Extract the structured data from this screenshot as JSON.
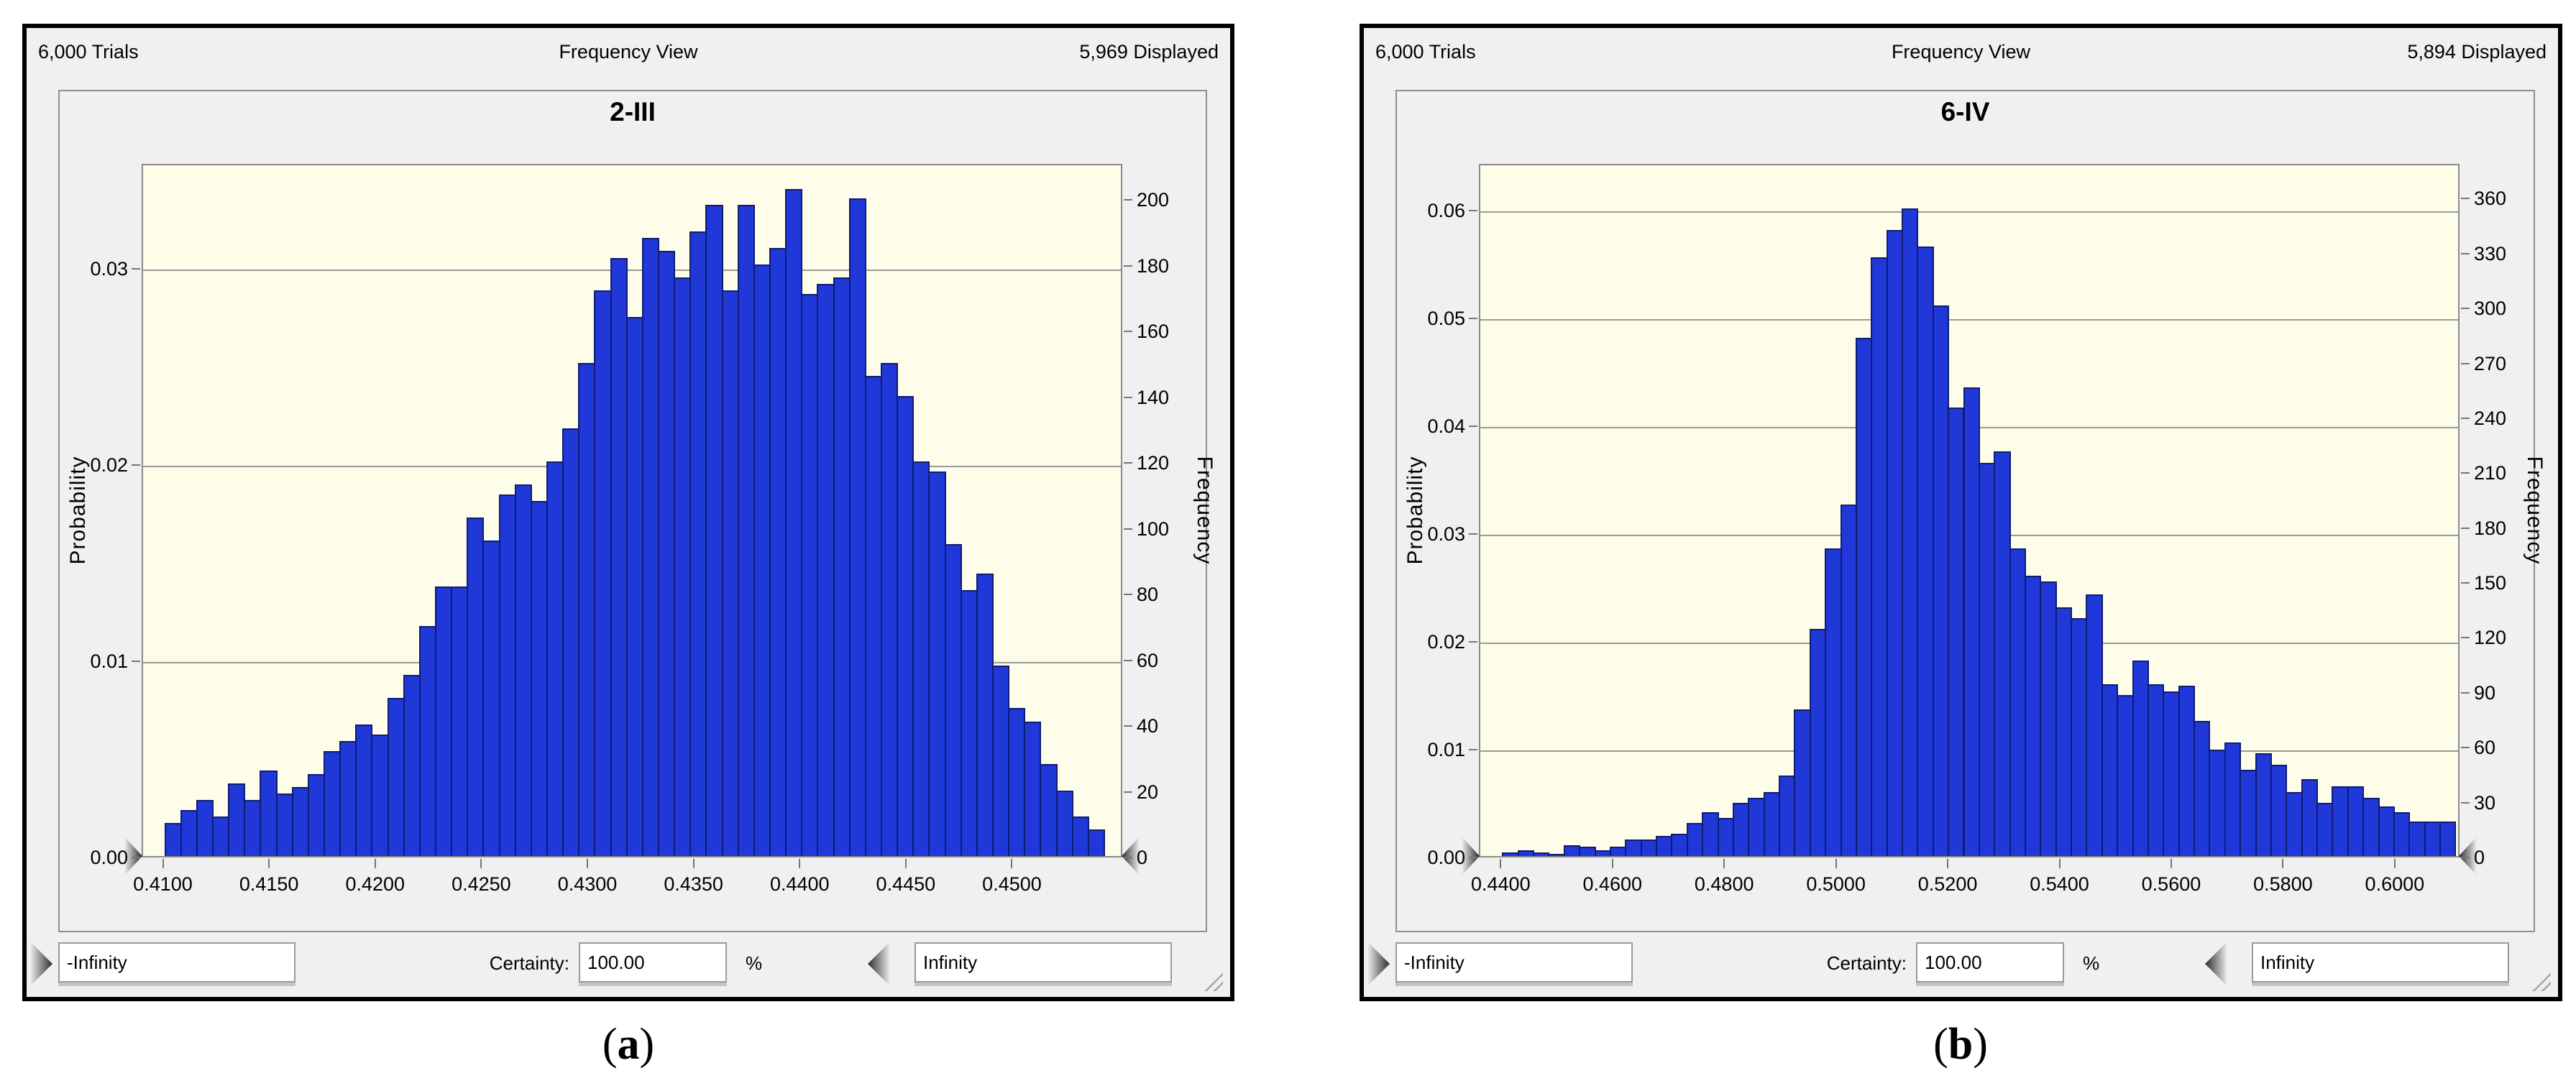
{
  "figure_labels": {
    "a": "(a)",
    "b": "(b)"
  },
  "panels": [
    {
      "header": {
        "trials": "6,000 Trials",
        "view": "Frequency View",
        "displayed": "5,969 Displayed"
      },
      "title": "2-III",
      "controls": {
        "lower": "-Infinity",
        "certainty_label": "Certainty:",
        "certainty": "100.00",
        "percent": "%",
        "upper": "Infinity"
      }
    },
    {
      "header": {
        "trials": "6,000 Trials",
        "view": "Frequency View",
        "displayed": "5,894 Displayed"
      },
      "title": "6-IV",
      "controls": {
        "lower": "-Infinity",
        "certainty_label": "Certainty:",
        "certainty": "100.00",
        "percent": "%",
        "upper": "Infinity"
      }
    }
  ],
  "chart_data": [
    {
      "panel": "a",
      "type": "bar",
      "title": "2-III",
      "trials": 6000,
      "displayed": 5969,
      "ylabel_left": "Probability",
      "ylabel_right": "Frequency",
      "grid": true,
      "x_min": 0.409,
      "x_max": 0.4552,
      "bin_start": 0.41,
      "bin_width": 0.00075,
      "ylim_freq": 211,
      "gridlines_freq": [
        59.7,
        119.4,
        179.1
      ],
      "left_ticks": [
        [
          "0.00",
          0
        ],
        [
          "0.01",
          59.7
        ],
        [
          "0.02",
          119.4
        ],
        [
          "0.03",
          179.1
        ]
      ],
      "right_ticks": [
        [
          "0",
          0
        ],
        [
          "20",
          20
        ],
        [
          "40",
          40
        ],
        [
          "60",
          60
        ],
        [
          "80",
          80
        ],
        [
          "100",
          100
        ],
        [
          "120",
          120
        ],
        [
          "140",
          140
        ],
        [
          "160",
          160
        ],
        [
          "180",
          180
        ],
        [
          "200",
          200
        ]
      ],
      "x_ticks": [
        [
          "0.4100",
          0.41
        ],
        [
          "0.4150",
          0.415
        ],
        [
          "0.4200",
          0.42
        ],
        [
          "0.4250",
          0.425
        ],
        [
          "0.4300",
          0.43
        ],
        [
          "0.4350",
          0.435
        ],
        [
          "0.4400",
          0.44
        ],
        [
          "0.4450",
          0.445
        ],
        [
          "0.4500",
          0.45
        ]
      ],
      "values": [
        10,
        14,
        17,
        12,
        22,
        17,
        26,
        19,
        21,
        25,
        32,
        35,
        40,
        37,
        48,
        55,
        70,
        82,
        82,
        103,
        96,
        110,
        113,
        108,
        120,
        130,
        150,
        172,
        182,
        164,
        188,
        184,
        176,
        190,
        198,
        172,
        198,
        180,
        185,
        203,
        171,
        174,
        176,
        200,
        146,
        150,
        140,
        120,
        117,
        95,
        81,
        86,
        58,
        45,
        41,
        28,
        20,
        12,
        8
      ]
    },
    {
      "panel": "b",
      "type": "bar",
      "title": "6-IV",
      "trials": 6000,
      "displayed": 5894,
      "ylabel_left": "Probability",
      "ylabel_right": "Frequency",
      "grid": true,
      "x_min": 0.4361,
      "x_max": 0.6116,
      "bin_start": 0.44,
      "bin_width": 0.00275,
      "ylim_freq": 379,
      "gridlines_freq": [
        58.9,
        117.9,
        176.8,
        235.8,
        294.7,
        353.6
      ],
      "left_ticks": [
        [
          "0.00",
          0
        ],
        [
          "0.01",
          58.9
        ],
        [
          "0.02",
          117.9
        ],
        [
          "0.03",
          176.8
        ],
        [
          "0.04",
          235.8
        ],
        [
          "0.05",
          294.7
        ],
        [
          "0.06",
          353.6
        ]
      ],
      "right_ticks": [
        [
          "0",
          0
        ],
        [
          "30",
          30
        ],
        [
          "60",
          60
        ],
        [
          "90",
          90
        ],
        [
          "120",
          120
        ],
        [
          "150",
          150
        ],
        [
          "180",
          180
        ],
        [
          "210",
          210
        ],
        [
          "240",
          240
        ],
        [
          "270",
          270
        ],
        [
          "300",
          300
        ],
        [
          "330",
          330
        ],
        [
          "360",
          360
        ]
      ],
      "x_ticks": [
        [
          "0.4400",
          0.44
        ],
        [
          "0.4600",
          0.46
        ],
        [
          "0.4800",
          0.48
        ],
        [
          "0.5000",
          0.5
        ],
        [
          "0.5200",
          0.52
        ],
        [
          "0.5400",
          0.54
        ],
        [
          "0.5600",
          0.56
        ],
        [
          "0.5800",
          0.58
        ],
        [
          "0.6000",
          0.6
        ]
      ],
      "values": [
        2,
        3,
        2,
        1,
        6,
        5,
        3,
        5,
        9,
        9,
        11,
        12,
        18,
        24,
        21,
        29,
        32,
        35,
        44,
        80,
        124,
        168,
        192,
        283,
        327,
        342,
        354,
        333,
        301,
        245,
        256,
        215,
        221,
        168,
        153,
        150,
        136,
        130,
        143,
        94,
        88,
        107,
        94,
        90,
        93,
        74,
        58,
        62,
        47,
        56,
        50,
        35,
        42,
        29,
        38,
        38,
        32,
        27,
        24,
        19,
        19,
        19
      ]
    }
  ]
}
